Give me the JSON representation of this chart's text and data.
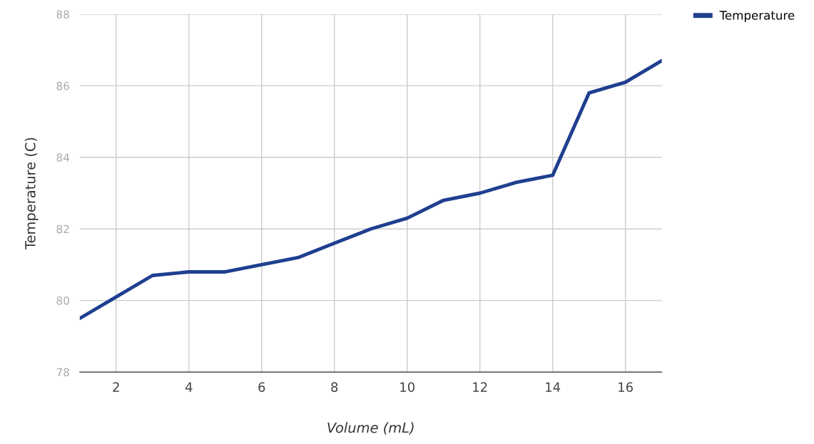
{
  "chart_data": {
    "type": "line",
    "xlabel": "Volume (mL)",
    "ylabel": "Temperature (C)",
    "x": [
      1,
      2,
      3,
      4,
      5,
      6,
      7,
      8,
      9,
      10,
      11,
      12,
      13,
      14,
      15,
      16,
      17
    ],
    "series": [
      {
        "name": "Temperature",
        "color": "#1f3f8f",
        "values": [
          79.5,
          80.1,
          80.7,
          80.8,
          80.8,
          81.0,
          81.2,
          81.6,
          82.0,
          82.3,
          82.8,
          83.0,
          83.3,
          83.5,
          85.8,
          86.1,
          86.7
        ]
      }
    ],
    "xlim": [
      1,
      17
    ],
    "xticks": [
      2,
      4,
      6,
      8,
      10,
      12,
      14,
      16
    ],
    "ylim": [
      78,
      88
    ],
    "yticks": [
      78,
      80,
      82,
      84,
      86,
      88
    ],
    "grid": true,
    "legend": "top right",
    "marker": "none",
    "line_style": "solid"
  }
}
